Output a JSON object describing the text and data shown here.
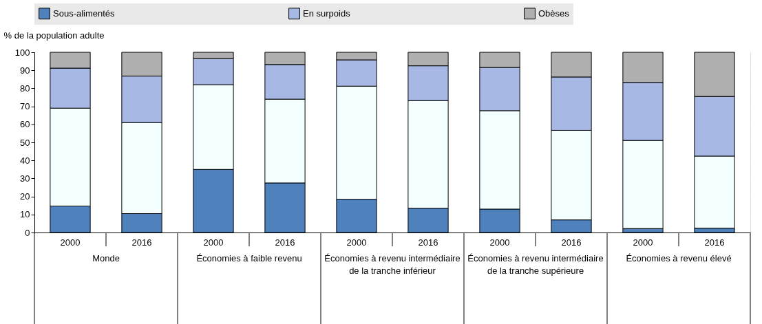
{
  "chart_data": {
    "type": "bar",
    "stacked": true,
    "ylabel": "% de la population adulte",
    "categories": [
      "2000",
      "2016",
      "2000",
      "2016",
      "2000",
      "2016",
      "2000",
      "2016",
      "2000",
      "2016"
    ],
    "annotations": [
      "Monde",
      "Économies à faible revenu",
      "Économies à revenu intermédiaire de la tranche inférieur",
      "Économies à revenu intermédiaire de la tranche supérieure",
      "Économies à revenu élevé"
    ],
    "series": [
      {
        "name": "Sous-alimentés",
        "color": "#4f81bd",
        "values": [
          14.7,
          10.5,
          35,
          27.5,
          18.5,
          13.5,
          13,
          7,
          2.2,
          2.4
        ]
      },
      {
        "color": "#f4ffff",
        "values": [
          54.3,
          50.5,
          47,
          46.5,
          62.7,
          59.7,
          54.6,
          49.7,
          48.9,
          40
        ]
      },
      {
        "name": "En surpoids",
        "color": "#a7b8e4",
        "values": [
          22.2,
          25.8,
          14.5,
          19.2,
          14.6,
          19.3,
          24,
          29.6,
          32.2,
          33.1
        ]
      },
      {
        "name": "Obèses",
        "color": "#afafaf",
        "values": [
          8.8,
          13.2,
          3.5,
          6.8,
          4.2,
          7.5,
          8.4,
          13.7,
          16.7,
          24.5
        ]
      }
    ],
    "ylim": [
      0,
      100
    ],
    "yticks": [
      0,
      10,
      20,
      30,
      40,
      50,
      60,
      70,
      80,
      90,
      100
    ],
    "grid": true,
    "legend": "top"
  }
}
